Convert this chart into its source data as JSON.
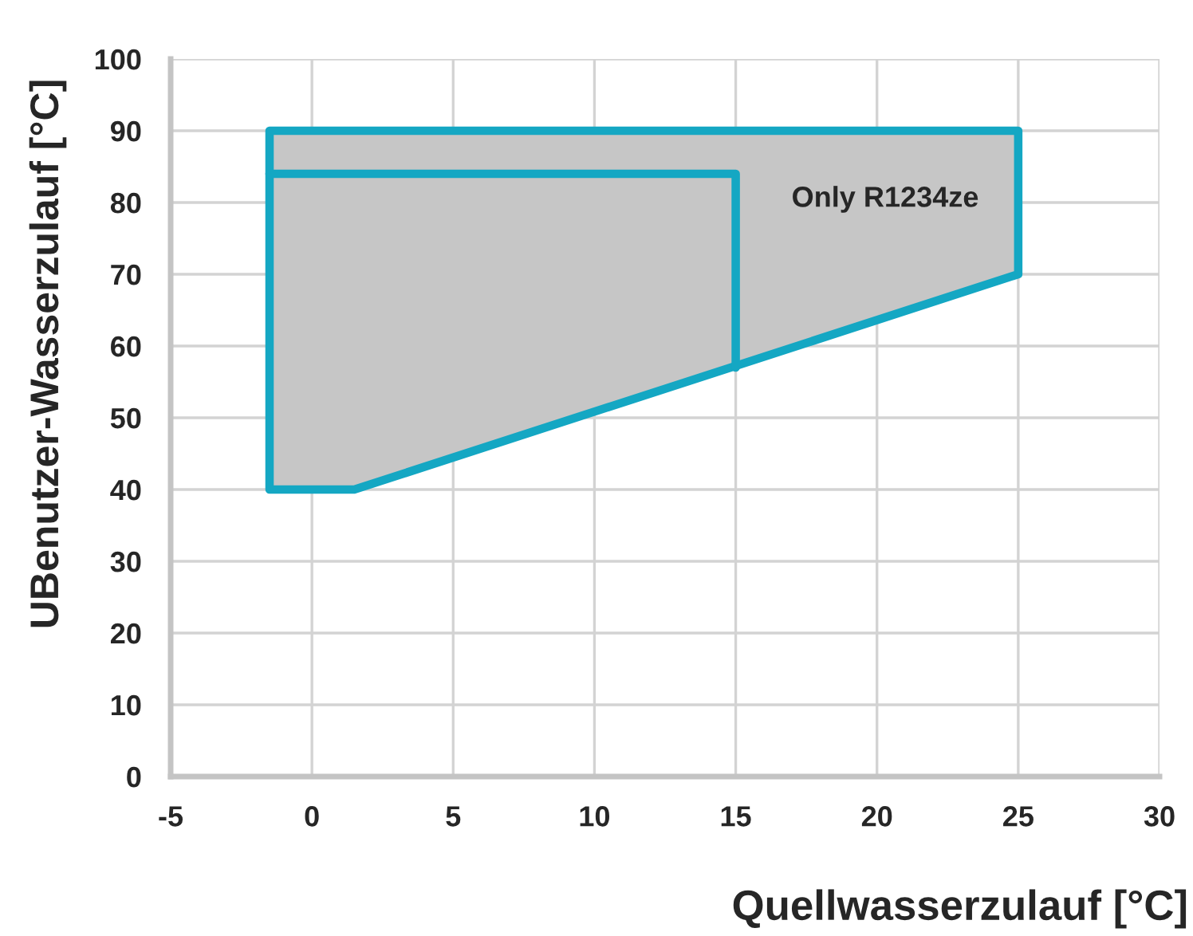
{
  "chart_data": {
    "type": "area",
    "xlabel": "Quellwasserzulauf [°C]",
    "ylabel": "UBenutzer-Wasserzulauf [°C]",
    "series": [
      {
        "color": "#c6c6c6",
        "x": [
          -1.5,
          -1.5,
          25,
          25,
          1.5,
          -1.5
        ],
        "values": [
          40,
          90,
          90,
          70,
          40,
          40
        ]
      },
      {
        "type": "line",
        "color": "#14a7c3",
        "x": [
          -1.5,
          15,
          15
        ],
        "values": [
          84,
          84,
          57
        ]
      }
    ],
    "annotations": [
      "Only R1234ze"
    ],
    "xlim": [
      -5,
      30
    ],
    "xticks": [
      -5,
      0,
      5,
      10,
      15,
      20,
      25,
      30
    ],
    "ylim": [
      0,
      100
    ],
    "yticks": [
      0,
      10,
      20,
      30,
      40,
      50,
      60,
      70,
      80,
      90,
      100
    ],
    "grid": true,
    "line_style": "solid"
  }
}
